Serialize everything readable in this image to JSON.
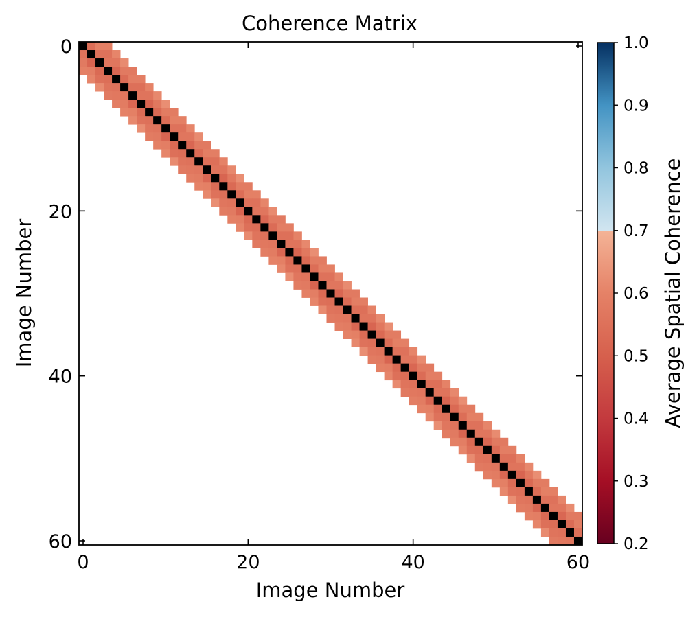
{
  "chart_data": {
    "type": "heatmap",
    "title": "Coherence Matrix",
    "xlabel": "Image Number",
    "ylabel": "Image Number",
    "colorbar_label": "Average Spatial Coherence",
    "n": 61,
    "band_halfwidth": 3,
    "diagonal_value": 1.0,
    "offdiag_values": {
      "1": 0.54,
      "2": 0.57,
      "3": 0.6
    },
    "colormap": "RdBu",
    "colorbar_note": "colours between 0.7 and 1.0 drawn as blue scale",
    "clim": [
      0.2,
      1.0
    ],
    "xticks": [
      0,
      20,
      40,
      60
    ],
    "yticks": [
      0,
      20,
      40,
      60
    ],
    "xtick_labels": [
      "0",
      "20",
      "40",
      "60"
    ],
    "ytick_labels": [
      "0",
      "20",
      "40",
      "60"
    ],
    "cbar_ticks": [
      0.2,
      0.3,
      0.4,
      0.5,
      0.6,
      0.7,
      0.8,
      0.9,
      1.0
    ],
    "cbar_tick_labels": [
      "0.2",
      "0.3",
      "0.4",
      "0.5",
      "0.6",
      "0.7",
      "0.8",
      "0.9",
      "1.0"
    ],
    "colors": {
      "diagonal": "#000000",
      "background": "#ffffff",
      "band": "#d6604d"
    },
    "colorbar_stops": [
      {
        "v": 0.2,
        "color": "#67001f"
      },
      {
        "v": 0.3,
        "color": "#a50f25"
      },
      {
        "v": 0.4,
        "color": "#c33a3e"
      },
      {
        "v": 0.5,
        "color": "#d6604d"
      },
      {
        "v": 0.6,
        "color": "#e58267"
      },
      {
        "v": 0.7,
        "color": "#f4b497"
      },
      {
        "v": 0.7,
        "color": "#d1e5f0"
      },
      {
        "v": 0.8,
        "color": "#92c5de"
      },
      {
        "v": 0.9,
        "color": "#4393c3"
      },
      {
        "v": 1.0,
        "color": "#053061"
      }
    ]
  }
}
